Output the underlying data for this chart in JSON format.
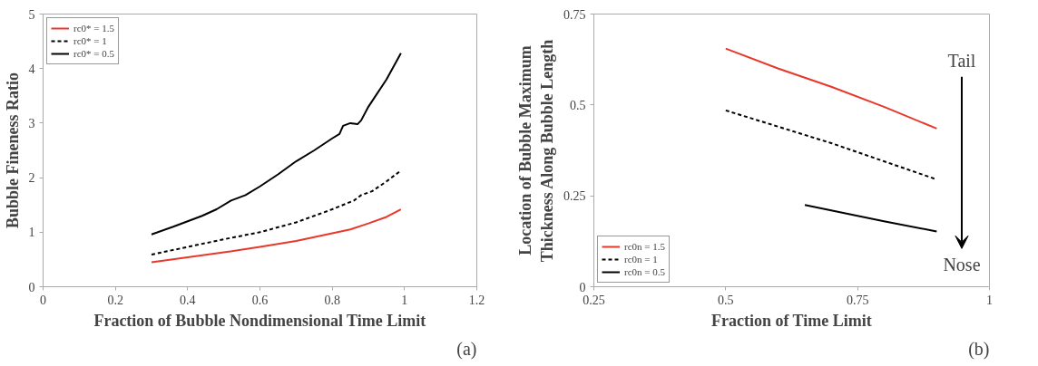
{
  "chart_data": [
    {
      "type": "line",
      "xlabel": "Fraction of Bubble Nondimensional Time Limit",
      "ylabel": "Bubble Fineness Ratio",
      "xlim": [
        0,
        1.2
      ],
      "xticks": [
        0,
        0.2,
        0.4,
        0.6,
        0.8,
        1,
        1.2
      ],
      "ylim": [
        0,
        5
      ],
      "yticks": [
        0,
        1,
        2,
        3,
        4,
        5
      ],
      "grid": false,
      "legend": "top left",
      "annotations": [
        "(a)"
      ],
      "series": [
        {
          "name": "rc0* = 1.5",
          "color": "#e8382b",
          "line_style": "solid",
          "x": [
            0.3,
            0.4,
            0.5,
            0.6,
            0.7,
            0.8,
            0.85,
            0.9,
            0.95,
            0.99
          ],
          "values": [
            0.45,
            0.54,
            0.63,
            0.73,
            0.84,
            0.98,
            1.05,
            1.16,
            1.28,
            1.42
          ]
        },
        {
          "name": "rc0* = 1",
          "color": "#000000",
          "line_style": "dashed",
          "x": [
            0.3,
            0.4,
            0.5,
            0.6,
            0.7,
            0.8,
            0.86,
            0.88,
            0.91,
            0.95,
            0.99
          ],
          "values": [
            0.59,
            0.73,
            0.87,
            1.0,
            1.18,
            1.42,
            1.58,
            1.68,
            1.75,
            1.93,
            2.13
          ]
        },
        {
          "name": "rc0* = 0.5",
          "color": "#000000",
          "line_style": "solid",
          "x": [
            0.3,
            0.36,
            0.44,
            0.48,
            0.52,
            0.56,
            0.6,
            0.65,
            0.7,
            0.75,
            0.8,
            0.82,
            0.83,
            0.85,
            0.87,
            0.88,
            0.9,
            0.95,
            0.99
          ],
          "values": [
            0.96,
            1.1,
            1.3,
            1.42,
            1.58,
            1.68,
            1.84,
            2.06,
            2.3,
            2.5,
            2.72,
            2.8,
            2.95,
            3.0,
            2.98,
            3.05,
            3.3,
            3.8,
            4.28
          ]
        }
      ]
    },
    {
      "type": "line",
      "xlabel": "Fraction of Time Limit",
      "ylabel": "Location of Bubble Maximum\nThickness Along Bubble Length",
      "xlim": [
        0.25,
        1
      ],
      "xticks": [
        0.25,
        0.5,
        0.75,
        1
      ],
      "ylim": [
        0,
        0.75
      ],
      "yticks": [
        0,
        0.25,
        0.5,
        0.75
      ],
      "grid": false,
      "legend": "bottom left",
      "annotations": [
        "Tail",
        "Nose",
        "(b)"
      ],
      "series": [
        {
          "name": "rc0n = 1.5",
          "color": "#e8382b",
          "line_style": "solid",
          "x": [
            0.5,
            0.6,
            0.7,
            0.8,
            0.9
          ],
          "values": [
            0.655,
            0.6,
            0.55,
            0.495,
            0.435
          ]
        },
        {
          "name": "rc0n = 1",
          "color": "#000000",
          "line_style": "dashed",
          "x": [
            0.5,
            0.6,
            0.7,
            0.8,
            0.9
          ],
          "values": [
            0.485,
            0.44,
            0.395,
            0.345,
            0.295
          ]
        },
        {
          "name": "rc0n = 0.5",
          "color": "#000000",
          "line_style": "solid",
          "x": [
            0.65,
            0.7,
            0.8,
            0.9
          ],
          "values": [
            0.225,
            0.21,
            0.18,
            0.152
          ]
        }
      ]
    }
  ]
}
